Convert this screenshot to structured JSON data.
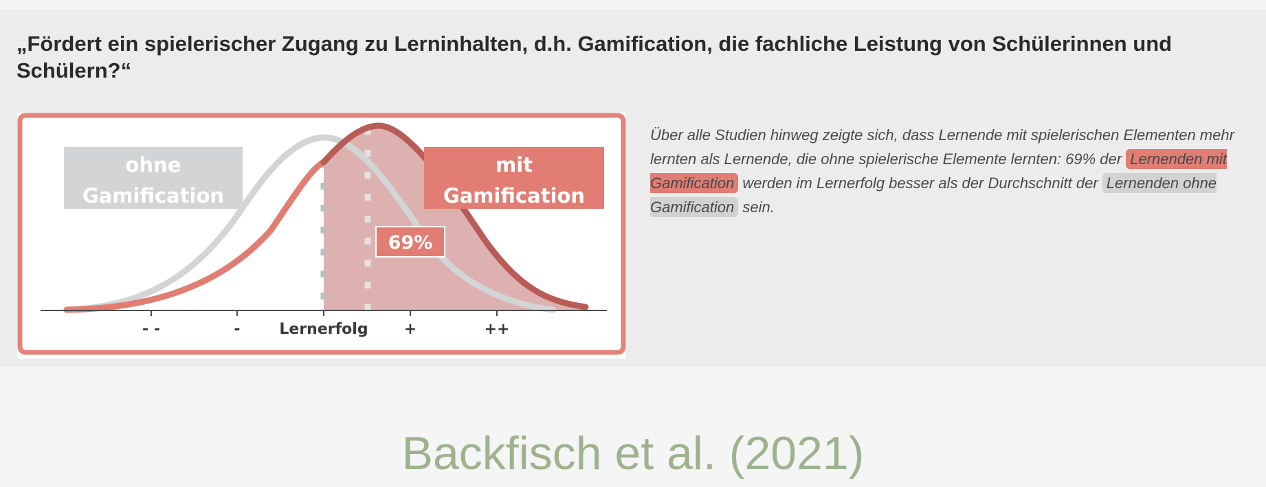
{
  "slide": {
    "question": "„Fördert ein spielerischer Zugang zu Lerninhalten, d.h. Gamification, die fachliche Leistung von Schülerinnen und Schülern?“",
    "citation": "Backfisch et al. (2021)"
  },
  "figure": {
    "label_without": [
      "ohne",
      "Gamification"
    ],
    "label_with": [
      "mit",
      "Gamification"
    ],
    "percent_label": "69%",
    "axis_ticks": [
      "- -",
      "-",
      "Lernerfolg",
      "+",
      "++"
    ],
    "colors": {
      "with": "#e17d73",
      "with_dark": "#b85c57",
      "without": "#d2d4d6",
      "shade": "#d9a9a6",
      "frame": "#e3837a"
    }
  },
  "description": {
    "part1": "Über alle Studien hinweg zeigte sich, dass Lernende mit spielerischen Elementen mehr lernten als Lernende, die ohne spielerische Elemente lernten: 69% der",
    "highlight_with": "Lernenden mit Gamification",
    "part2": "werden im Lernerfolg besser als der Durchschnitt der",
    "highlight_without": "Lernenden ohne Gamification",
    "part3": "sein."
  }
}
